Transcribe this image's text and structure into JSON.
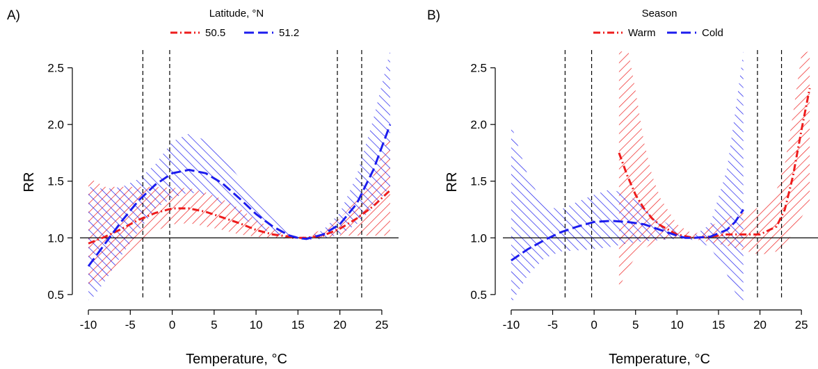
{
  "colors": {
    "red": "#ee1c1c",
    "blue": "#1c1cee",
    "axis": "#000000"
  },
  "chart_data": [
    {
      "type": "line",
      "panel_label": "A)",
      "xlabel": "Temperature, °C",
      "ylabel": "RR",
      "xlim": [
        -11,
        27
      ],
      "ylim": [
        0.45,
        2.62
      ],
      "xticks": [
        -10,
        -5,
        0,
        5,
        10,
        15,
        20,
        25
      ],
      "yticks": [
        0.5,
        1.0,
        1.5,
        2.0,
        2.5
      ],
      "xtick_labels": [
        "-10",
        "-5",
        "0",
        "5",
        "10",
        "15",
        "20",
        "25"
      ],
      "ytick_labels": [
        "0.5",
        "1.0",
        "1.5",
        "2.0",
        "2.5"
      ],
      "reference_line": 1.0,
      "vertical_lines": [
        -3.5,
        -0.3,
        19.7,
        22.6
      ],
      "legend": {
        "title": "Latitude, °N",
        "position": "top-center"
      },
      "series": [
        {
          "name": "50.5",
          "color": "#ee1c1c",
          "line_style": "dash-dot",
          "hatch": "forward",
          "x": [
            -10,
            -8,
            -6,
            -4,
            -2,
            0,
            2,
            4,
            6,
            8,
            10,
            12,
            14,
            15,
            16,
            18,
            20,
            22,
            24,
            26
          ],
          "y": [
            0.95,
            1.01,
            1.08,
            1.16,
            1.22,
            1.26,
            1.26,
            1.23,
            1.18,
            1.13,
            1.07,
            1.03,
            1.01,
            1.0,
            1.0,
            1.02,
            1.08,
            1.17,
            1.28,
            1.42
          ],
          "lower": [
            0.55,
            0.65,
            0.79,
            0.93,
            1.06,
            1.12,
            1.13,
            1.1,
            1.07,
            1.03,
            1.01,
            1.0,
            0.99,
            0.99,
            0.99,
            1.0,
            1.02,
            1.02,
            1.02,
            1.02
          ],
          "upper": [
            1.53,
            1.45,
            1.45,
            1.45,
            1.45,
            1.44,
            1.44,
            1.4,
            1.34,
            1.26,
            1.16,
            1.08,
            1.03,
            1.01,
            1.01,
            1.08,
            1.17,
            1.33,
            1.55,
            1.91
          ]
        },
        {
          "name": "51.2",
          "color": "#1c1cee",
          "line_style": "long-dash",
          "hatch": "backward",
          "x": [
            -10,
            -8,
            -6,
            -4,
            -2,
            0,
            2,
            4,
            6,
            8,
            10,
            12,
            14,
            15,
            16,
            18,
            20,
            22,
            24,
            26
          ],
          "y": [
            0.75,
            0.95,
            1.15,
            1.33,
            1.47,
            1.57,
            1.6,
            1.57,
            1.48,
            1.35,
            1.21,
            1.1,
            1.02,
            1.0,
            0.99,
            1.03,
            1.12,
            1.3,
            1.6,
            2.0
          ],
          "lower": [
            0.42,
            0.62,
            0.85,
            1.06,
            1.26,
            1.35,
            1.4,
            1.38,
            1.3,
            1.2,
            1.1,
            1.04,
            1.0,
            0.99,
            0.98,
            0.99,
            1.03,
            1.12,
            1.27,
            1.45
          ],
          "upper": [
            1.45,
            1.43,
            1.45,
            1.52,
            1.65,
            1.85,
            1.92,
            1.86,
            1.72,
            1.53,
            1.35,
            1.18,
            1.05,
            1.01,
            1.0,
            1.07,
            1.22,
            1.55,
            2.05,
            2.65
          ]
        }
      ]
    },
    {
      "type": "line",
      "panel_label": "B)",
      "xlabel": "Temperature, °C",
      "ylabel": "RR",
      "xlim": [
        -11,
        27
      ],
      "ylim": [
        0.45,
        2.62
      ],
      "xticks": [
        -10,
        -5,
        0,
        5,
        10,
        15,
        20,
        25
      ],
      "yticks": [
        0.5,
        1.0,
        1.5,
        2.0,
        2.5
      ],
      "xtick_labels": [
        "-10",
        "-5",
        "0",
        "5",
        "10",
        "15",
        "20",
        "25"
      ],
      "ytick_labels": [
        "0.5",
        "1.0",
        "1.5",
        "2.0",
        "2.5"
      ],
      "reference_line": 1.0,
      "vertical_lines": [
        -3.5,
        -0.3,
        19.7,
        22.6
      ],
      "legend": {
        "title": "Season",
        "position": "top-center"
      },
      "series": [
        {
          "name": "Warm",
          "color": "#ee1c1c",
          "line_style": "dash-dot",
          "hatch": "forward",
          "x": [
            3,
            4,
            5,
            6,
            7,
            8,
            10,
            12,
            14,
            16,
            18,
            20,
            22,
            23,
            24,
            25,
            26
          ],
          "y": [
            1.75,
            1.55,
            1.38,
            1.26,
            1.17,
            1.11,
            1.03,
            1.0,
            1.01,
            1.03,
            1.03,
            1.03,
            1.1,
            1.25,
            1.55,
            1.95,
            2.32
          ],
          "lower": [
            0.55,
            0.72,
            0.83,
            0.9,
            0.95,
            0.98,
            1.0,
            0.99,
            0.96,
            0.93,
            0.89,
            0.85,
            0.88,
            0.94,
            1.05,
            1.18,
            1.3
          ],
          "upper": [
            2.7,
            2.7,
            2.3,
            1.85,
            1.55,
            1.35,
            1.12,
            1.03,
            1.1,
            1.18,
            1.22,
            1.27,
            1.42,
            1.65,
            2.1,
            2.62,
            2.65
          ]
        },
        {
          "name": "Cold",
          "color": "#1c1cee",
          "line_style": "long-dash",
          "hatch": "backward",
          "x": [
            -10,
            -8,
            -6,
            -4,
            -2,
            0,
            2,
            4,
            6,
            8,
            10,
            11,
            12,
            14,
            16,
            17,
            18
          ],
          "y": [
            0.8,
            0.9,
            0.98,
            1.05,
            1.1,
            1.14,
            1.15,
            1.14,
            1.12,
            1.07,
            1.02,
            1.0,
            1.0,
            1.01,
            1.07,
            1.14,
            1.25
          ],
          "lower": [
            0.42,
            0.67,
            0.82,
            0.88,
            0.89,
            0.9,
            0.92,
            0.95,
            0.97,
            0.98,
            0.99,
            0.99,
            0.98,
            0.92,
            0.68,
            0.52,
            0.42
          ],
          "upper": [
            2.0,
            1.55,
            1.28,
            1.25,
            1.32,
            1.38,
            1.43,
            1.38,
            1.28,
            1.17,
            1.06,
            1.01,
            1.02,
            1.12,
            1.6,
            2.1,
            2.65
          ]
        }
      ]
    }
  ]
}
